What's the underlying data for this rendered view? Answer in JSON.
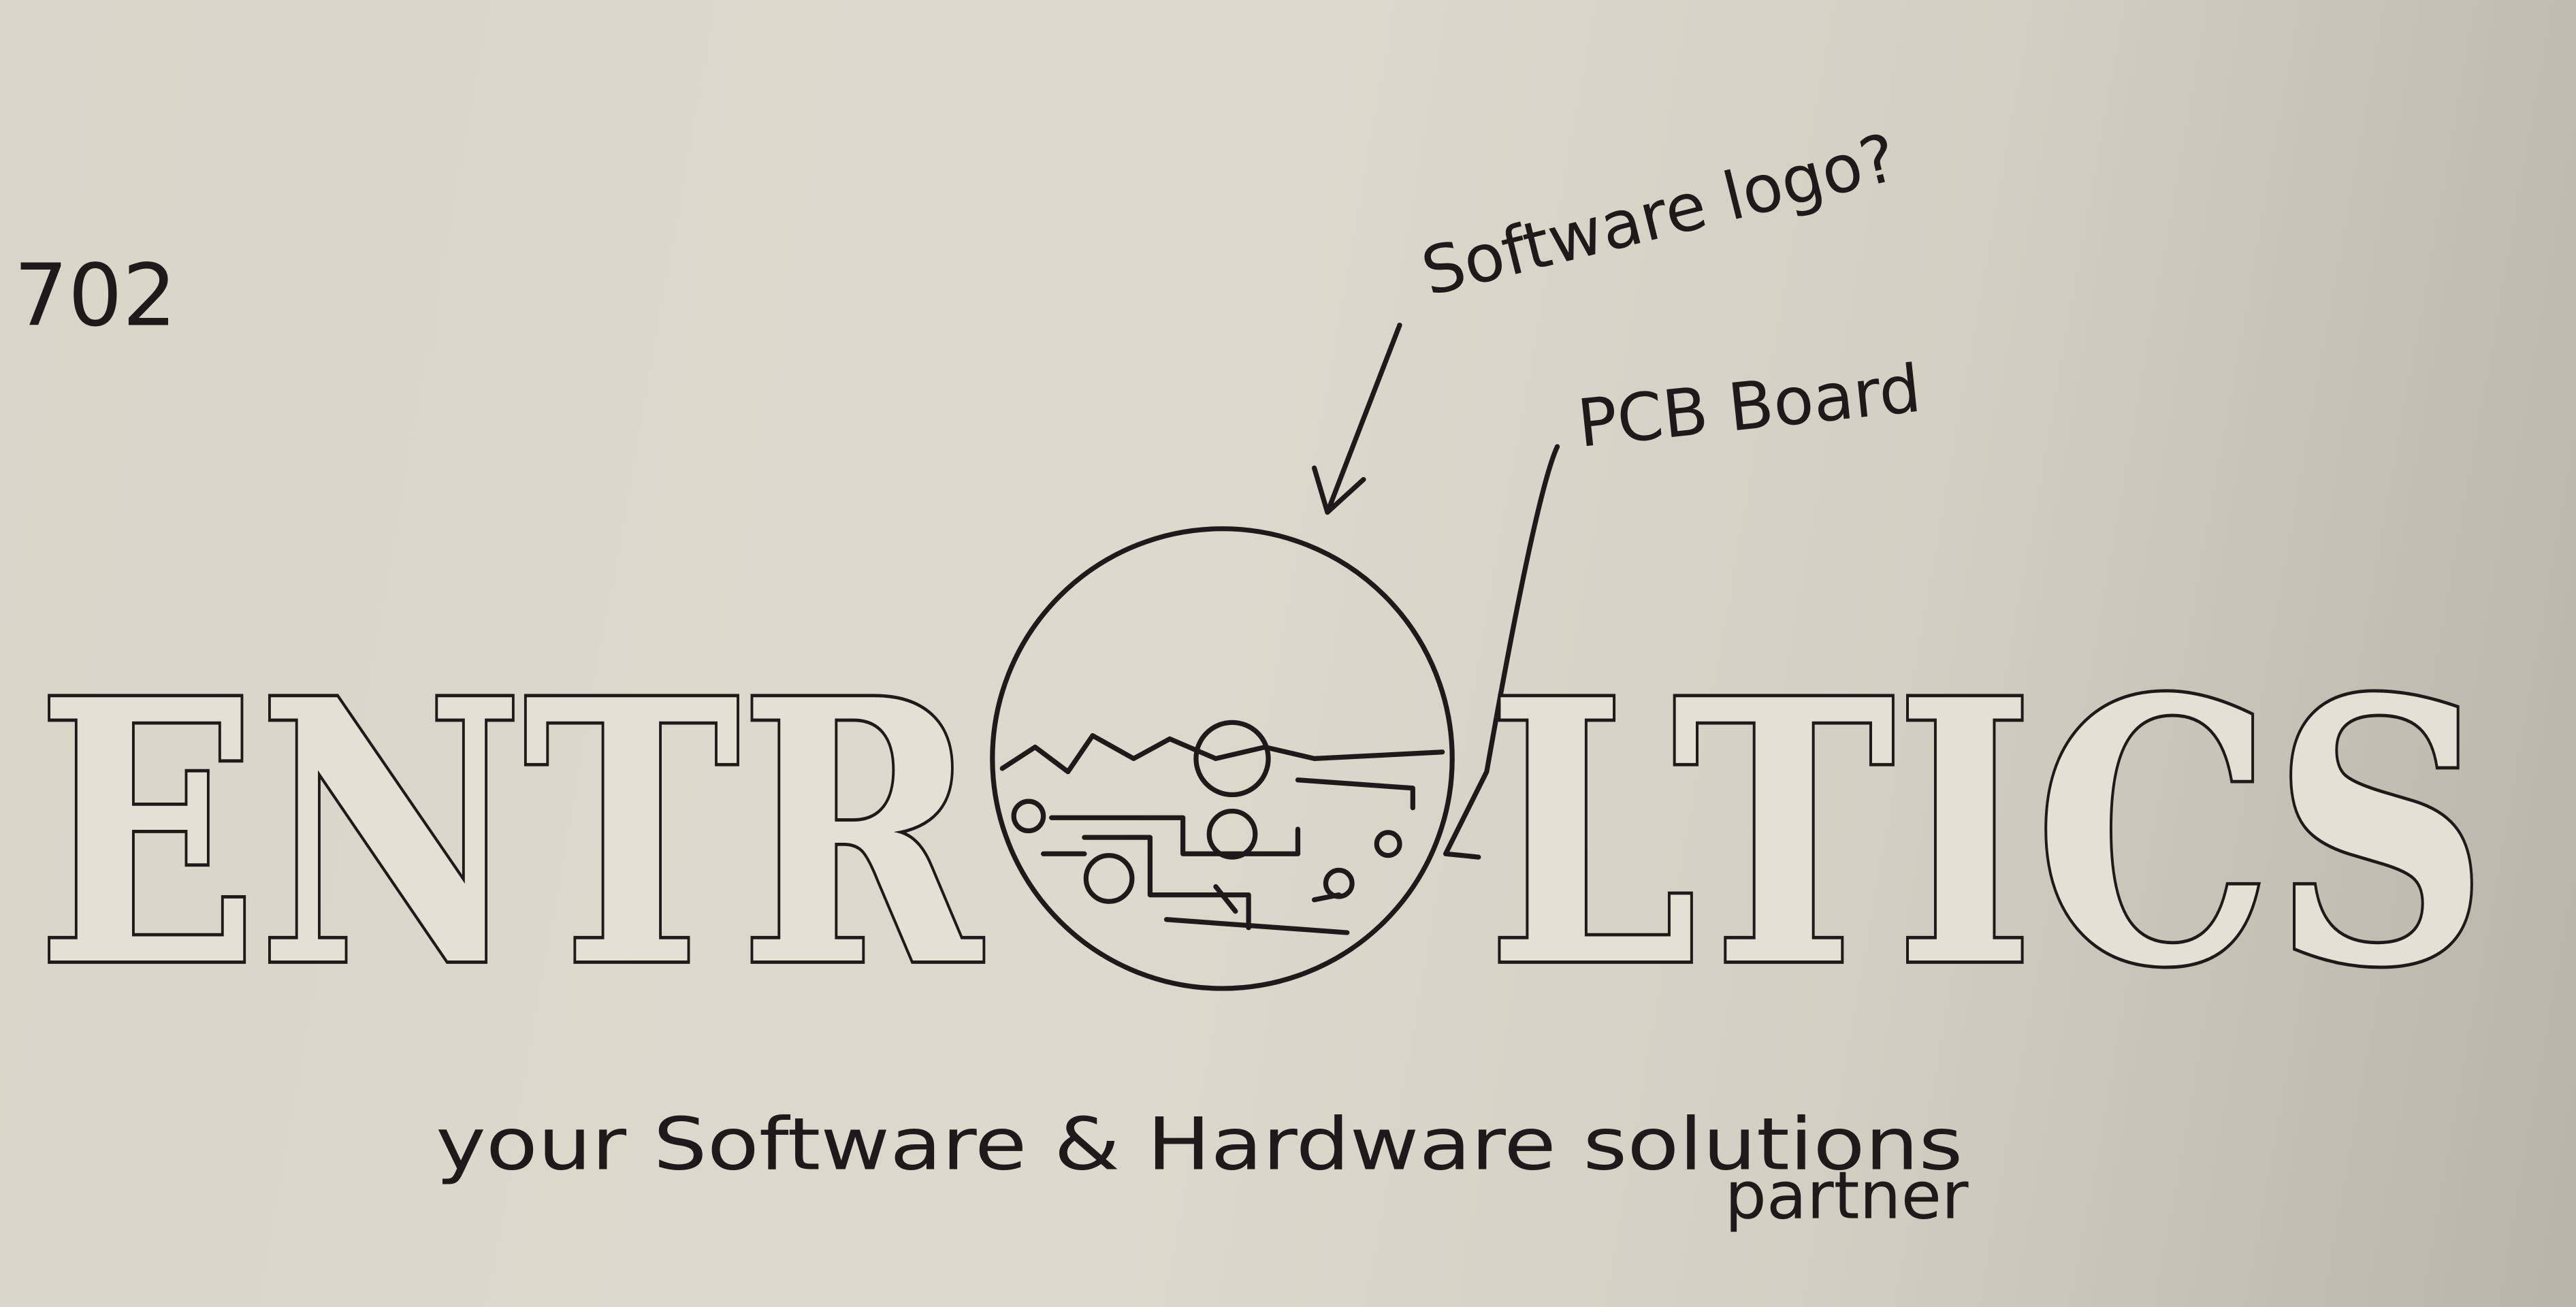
{
  "note_number": "702",
  "annotations": {
    "software": "Software logo?",
    "pcb": "PCB Board"
  },
  "logo": {
    "left": "ENTR",
    "right": "LTICS"
  },
  "tagline": {
    "line1": "your Software & Hardware solutions",
    "line2": "partner"
  }
}
